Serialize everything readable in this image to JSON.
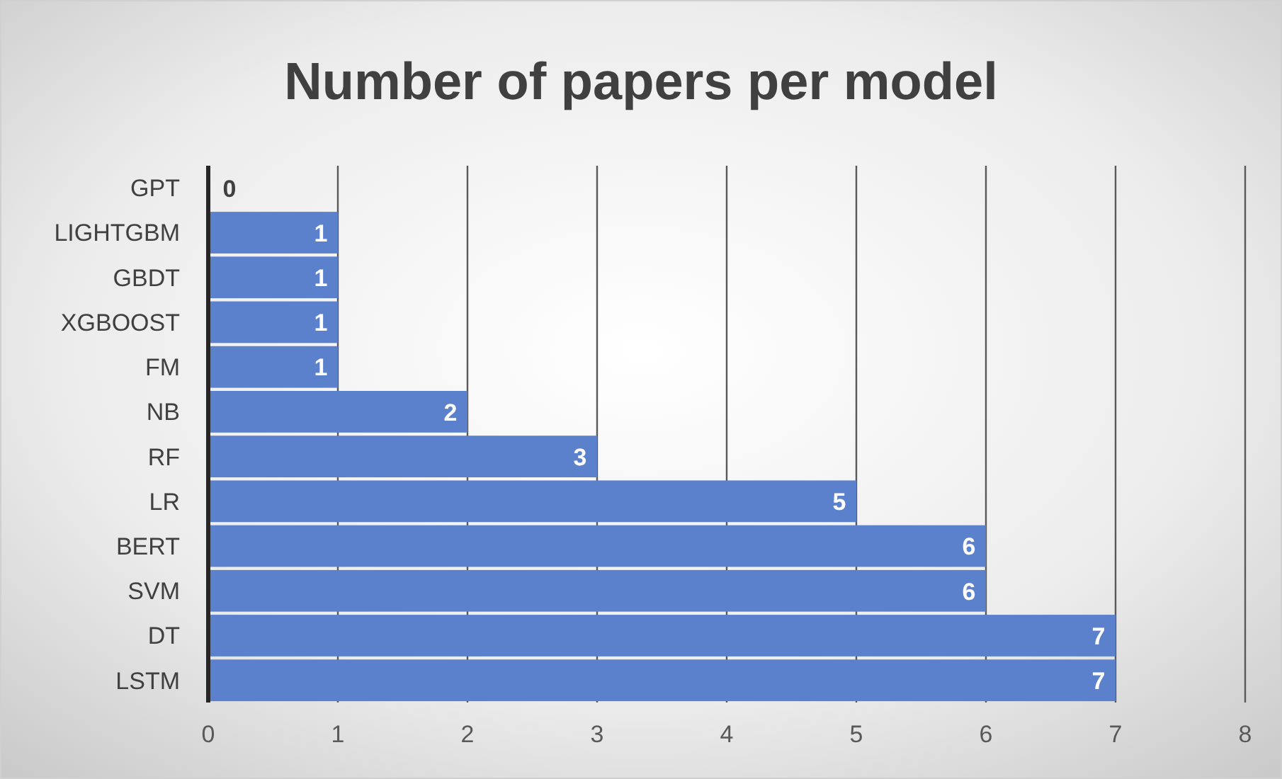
{
  "chart_data": {
    "type": "bar",
    "orientation": "horizontal",
    "title": "Number of papers per model",
    "categories": [
      "GPT",
      "LIGHTGBM",
      "GBDT",
      "XGBOOST",
      "FM",
      "NB",
      "RF",
      "LR",
      "BERT",
      "SVM",
      "DT",
      "LSTM"
    ],
    "values": [
      0,
      1,
      1,
      1,
      1,
      2,
      3,
      5,
      6,
      6,
      7,
      7
    ],
    "color": "#5b80cc",
    "xlim": [
      0,
      8
    ],
    "xticks": [
      0,
      1,
      2,
      3,
      4,
      5,
      6,
      7,
      8
    ],
    "grid": "x",
    "data_labels": true
  }
}
